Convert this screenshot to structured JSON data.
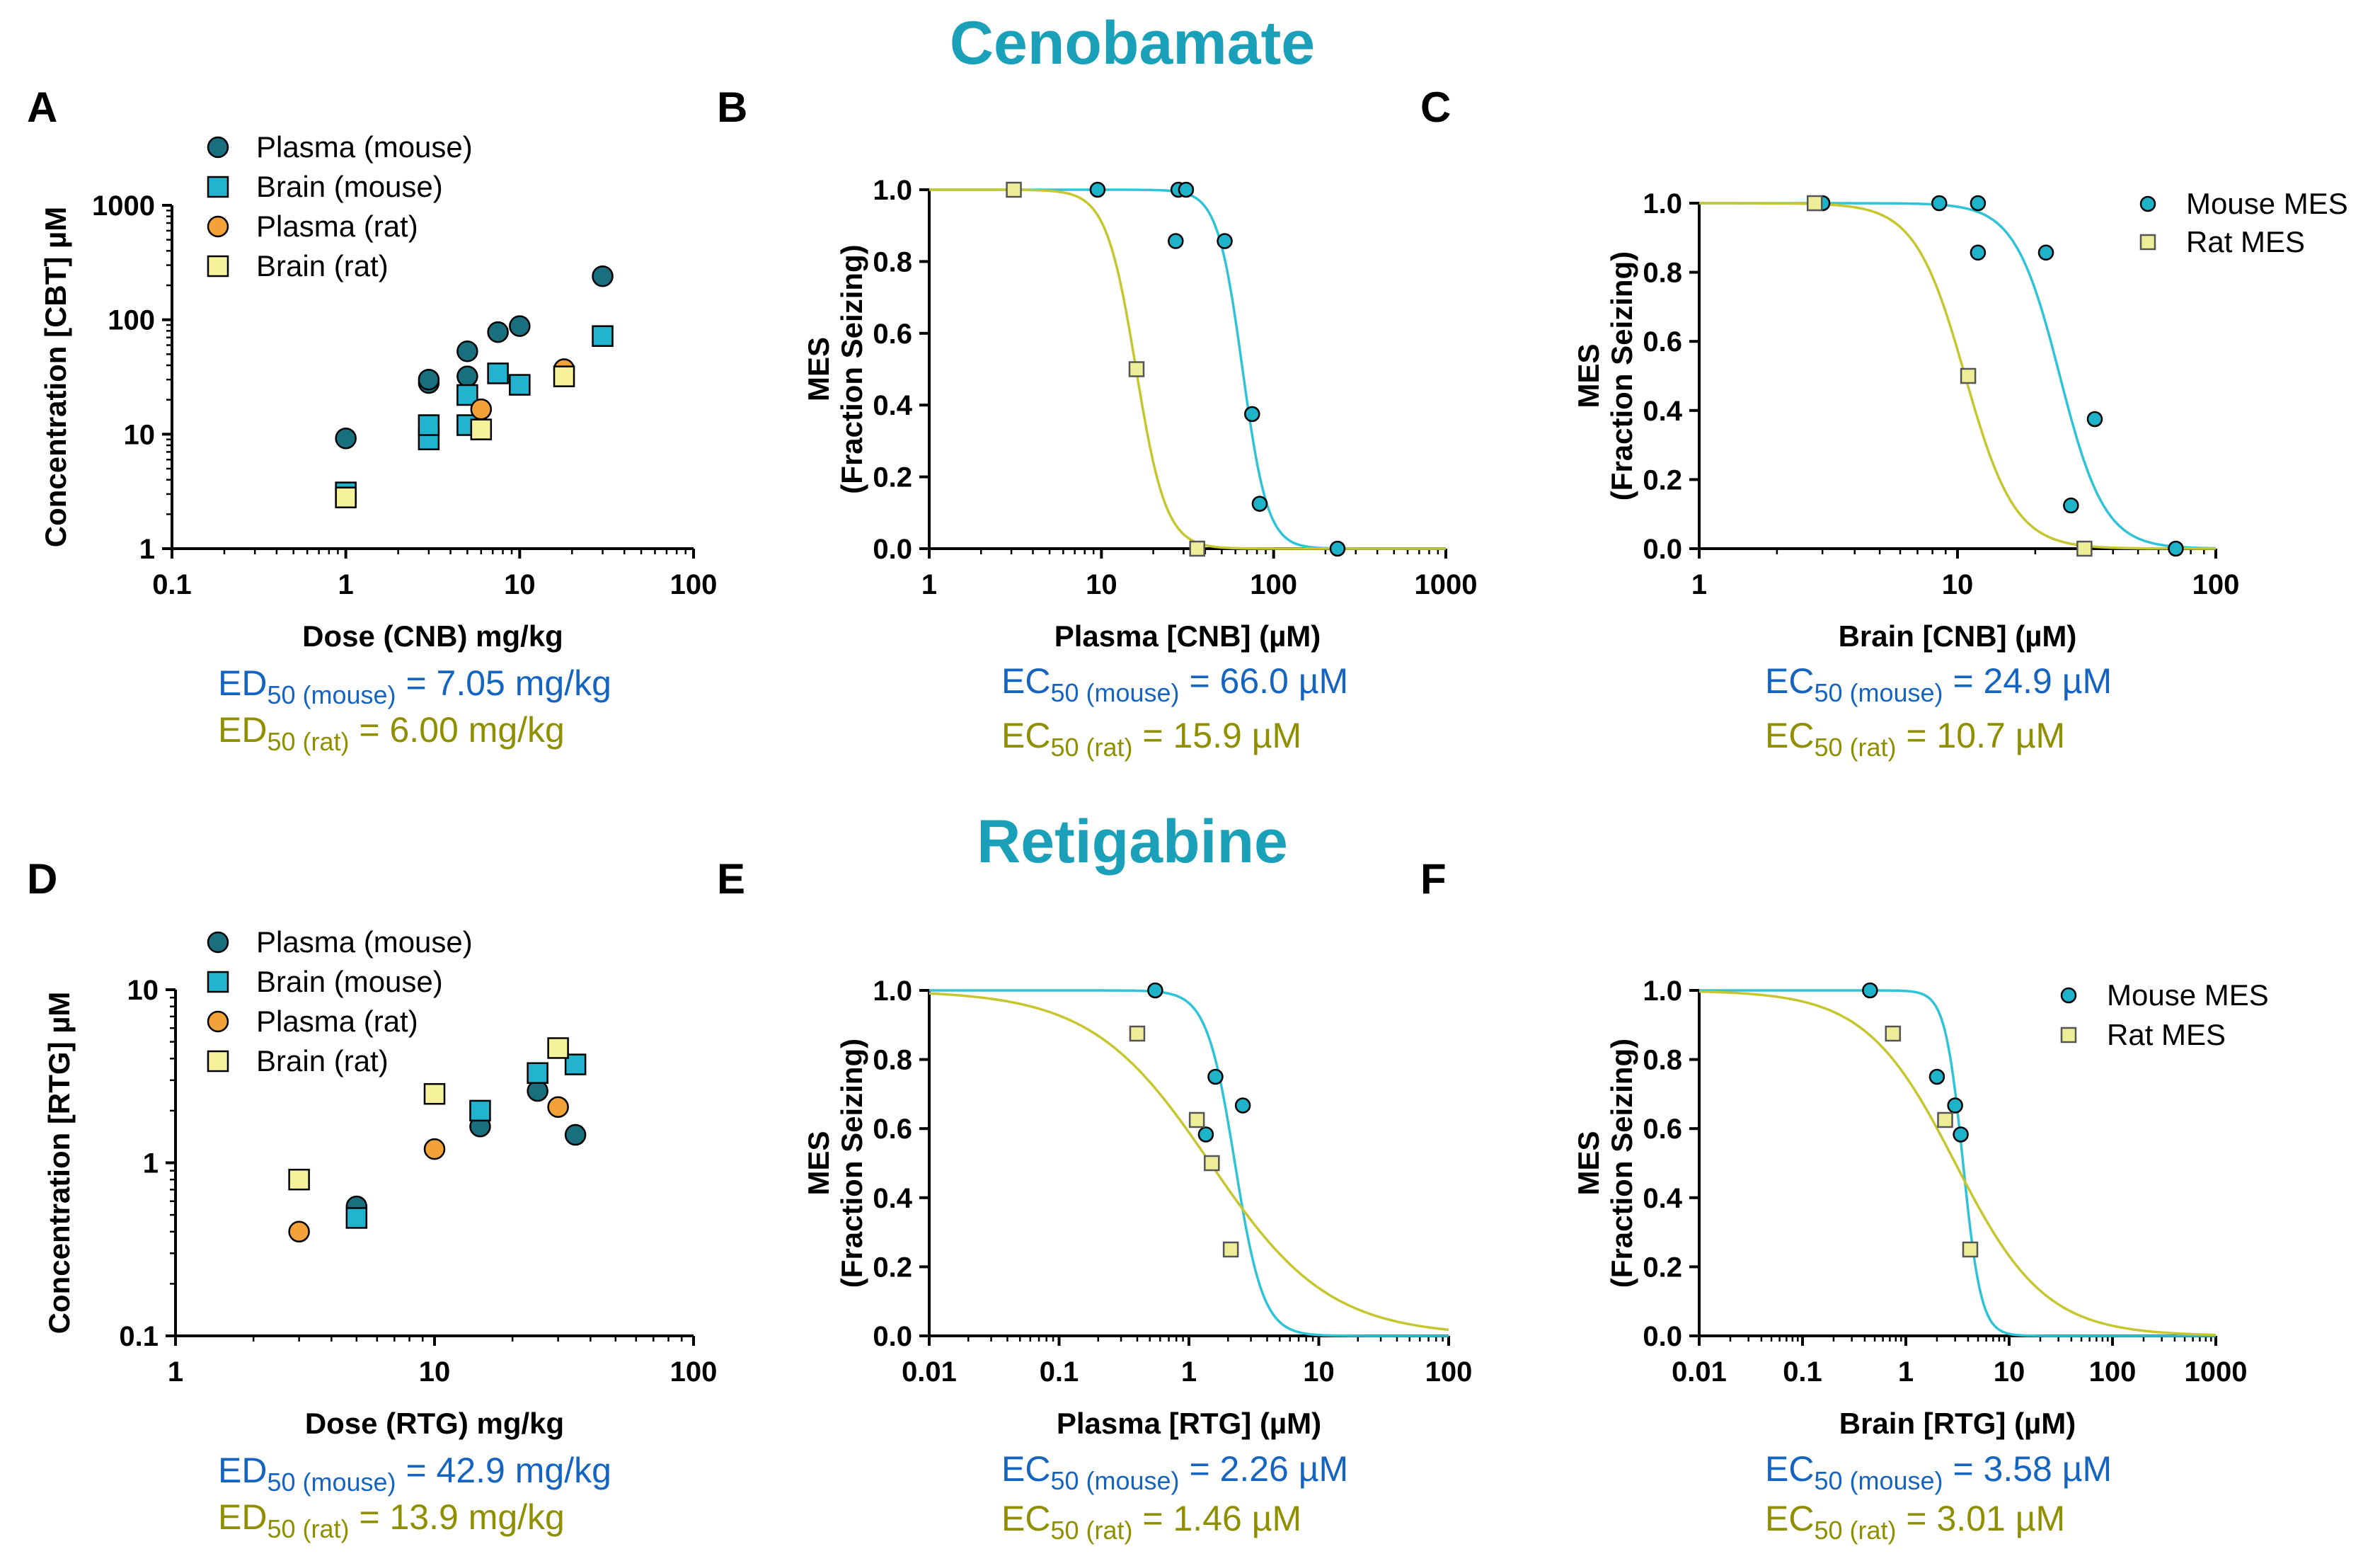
{
  "headers": {
    "cenobamate": "Cenobamate",
    "retigabine": "Retigabine"
  },
  "colors": {
    "plasma_mouse": "#1a6f7f",
    "brain_mouse": "#22b3cf",
    "plasma_rat": "#f3a23a",
    "brain_rat": "#f6f29b",
    "mouse_pt": "#1fb3c9",
    "rat_pt": "#eeee99",
    "mouse_curve": "#2ec3d6",
    "rat_curve": "#c6c62e",
    "mouse_text": "#1565c0",
    "rat_text": "#8f8f00"
  },
  "annotations": {
    "A": {
      "mouse": {
        "pre": "ED",
        "sub": "50 (mouse)",
        "post": " = 7.05 mg/kg"
      },
      "rat": {
        "pre": "ED",
        "sub": "50 (rat)",
        "post": " = 6.00 mg/kg"
      }
    },
    "B": {
      "mouse": {
        "pre": "EC",
        "sub": "50 (mouse)",
        "post": " = 66.0 µM"
      },
      "rat": {
        "pre": "EC",
        "sub": "50 (rat)",
        "post": " = 15.9 µM"
      }
    },
    "C": {
      "mouse": {
        "pre": "EC",
        "sub": "50 (mouse)",
        "post": " = 24.9 µM"
      },
      "rat": {
        "pre": "EC",
        "sub": "50 (rat)",
        "post": " = 10.7 µM"
      }
    },
    "D": {
      "mouse": {
        "pre": "ED",
        "sub": "50 (mouse)",
        "post": " = 42.9 mg/kg"
      },
      "rat": {
        "pre": "ED",
        "sub": "50 (rat)",
        "post": " = 13.9 mg/kg"
      }
    },
    "E": {
      "mouse": {
        "pre": "EC",
        "sub": "50 (mouse)",
        "post": " = 2.26 µM"
      },
      "rat": {
        "pre": "EC",
        "sub": "50 (rat)",
        "post": " = 1.46 µM"
      }
    },
    "F": {
      "mouse": {
        "pre": "EC",
        "sub": "50 (mouse)",
        "post": " = 3.58 µM"
      },
      "rat": {
        "pre": "EC",
        "sub": "50 (rat)",
        "post": " = 3.01 µM"
      }
    }
  },
  "chart_data": [
    {
      "id": "A",
      "type": "scatter",
      "xscale": "log",
      "yscale": "log",
      "xlabel": "Dose (CNB) mg/kg",
      "ylabel": "Concentration [CBT] µM",
      "xlim": [
        0.1,
        100
      ],
      "ylim": [
        1,
        1000
      ],
      "xticks": [
        0.1,
        1,
        10,
        100
      ],
      "xticklabels": [
        "0.1",
        "1",
        "10",
        "100"
      ],
      "yticks": [
        1,
        10,
        100,
        1000
      ],
      "yticklabels": [
        "1",
        "10",
        "100",
        "1000"
      ],
      "legend_pos": "top-left",
      "series": [
        {
          "name": "Plasma (mouse)",
          "marker": "circle",
          "color": "#1a6f7f",
          "points": [
            [
              1,
              9.2
            ],
            [
              3,
              28
            ],
            [
              3,
              30
            ],
            [
              5,
              32
            ],
            [
              5,
              53
            ],
            [
              7.5,
              78
            ],
            [
              10,
              88
            ],
            [
              30,
              240
            ]
          ]
        },
        {
          "name": "Brain (mouse)",
          "marker": "square",
          "color": "#22b3cf",
          "points": [
            [
              1,
              3.1
            ],
            [
              3,
              9
            ],
            [
              3,
              12
            ],
            [
              5,
              12
            ],
            [
              5,
              22
            ],
            [
              7.5,
              34
            ],
            [
              10,
              27
            ],
            [
              30,
              72
            ]
          ]
        },
        {
          "name": "Plasma (rat)",
          "marker": "circle",
          "color": "#f3a23a",
          "points": [
            [
              6,
              16.5
            ],
            [
              18,
              37
            ]
          ]
        },
        {
          "name": "Brain (rat)",
          "marker": "square",
          "color": "#f6f29b",
          "points": [
            [
              1,
              2.8
            ],
            [
              6,
              11
            ],
            [
              18,
              32
            ]
          ]
        }
      ]
    },
    {
      "id": "B",
      "type": "scatter",
      "xscale": "log",
      "yscale": "linear",
      "xlabel": "Plasma [CNB] (µM)",
      "ylabel": [
        "MES",
        "(Fraction Seizing)"
      ],
      "xlim": [
        1,
        1000
      ],
      "ylim": [
        0,
        1
      ],
      "xticks": [
        1,
        10,
        100,
        1000
      ],
      "xticklabels": [
        "1",
        "10",
        "100",
        "1000"
      ],
      "yticks": [
        0,
        0.2,
        0.4,
        0.6,
        0.8,
        1.0
      ],
      "yticklabels": [
        "0.0",
        "0.2",
        "0.4",
        "0.6",
        "0.8",
        "1.0"
      ],
      "legend_pos": "none",
      "series": [
        {
          "name": "Mouse MES",
          "marker": "circle",
          "color": "#1fb3c9",
          "points": [
            [
              9.5,
              1.0
            ],
            [
              28,
              1.0
            ],
            [
              31,
              1.0
            ],
            [
              27,
              0.857
            ],
            [
              52,
              0.857
            ],
            [
              75,
              0.375
            ],
            [
              83,
              0.125
            ],
            [
              235,
              0.0
            ]
          ]
        },
        {
          "name": "Rat MES",
          "marker": "square",
          "color": "#eeee99",
          "points": [
            [
              3.1,
              1.0
            ],
            [
              16,
              0.5
            ],
            [
              36,
              0.0
            ]
          ]
        }
      ],
      "fits": [
        {
          "name": "Mouse fit",
          "color": "#2ec3d6",
          "ec50": 66.0,
          "hill": 6.0
        },
        {
          "name": "Rat fit",
          "color": "#c6c62e",
          "ec50": 15.9,
          "hill": 5.0
        }
      ]
    },
    {
      "id": "C",
      "type": "scatter",
      "xscale": "log",
      "yscale": "linear",
      "xlabel": "Brain [CNB] (µM)",
      "ylabel": [
        "MES",
        "(Fraction Seizing)"
      ],
      "xlim": [
        1,
        100
      ],
      "ylim": [
        0,
        1
      ],
      "xticks": [
        1,
        10,
        100
      ],
      "xticklabels": [
        "1",
        "10",
        "100"
      ],
      "yticks": [
        0,
        0.2,
        0.4,
        0.6,
        0.8,
        1.0
      ],
      "yticklabels": [
        "0.0",
        "0.2",
        "0.4",
        "0.6",
        "0.8",
        "1.0"
      ],
      "legend_pos": "top-right",
      "series": [
        {
          "name": "Mouse MES",
          "marker": "circle",
          "color": "#1fb3c9",
          "points": [
            [
              3.0,
              1.0
            ],
            [
              8.5,
              1.0
            ],
            [
              12,
              1.0
            ],
            [
              12,
              0.857
            ],
            [
              22,
              0.857
            ],
            [
              27.5,
              0.125
            ],
            [
              34,
              0.375
            ],
            [
              70,
              0.0
            ]
          ]
        },
        {
          "name": "Rat MES",
          "marker": "square",
          "color": "#eeee99",
          "points": [
            [
              2.8,
              1.0
            ],
            [
              11,
              0.5
            ],
            [
              31,
              0.0
            ]
          ]
        }
      ],
      "fits": [
        {
          "name": "Mouse fit",
          "color": "#2ec3d6",
          "ec50": 24.9,
          "hill": 5.0
        },
        {
          "name": "Rat fit",
          "color": "#c6c62e",
          "ec50": 10.7,
          "hill": 4.5
        }
      ]
    },
    {
      "id": "D",
      "type": "scatter",
      "xscale": "log",
      "yscale": "log",
      "xlabel": "Dose (RTG) mg/kg",
      "ylabel": "Concentration [RTG] µM",
      "xlim": [
        1,
        100
      ],
      "ylim": [
        0.1,
        10
      ],
      "xticks": [
        1,
        10,
        100
      ],
      "xticklabels": [
        "1",
        "10",
        "100"
      ],
      "yticks": [
        0.1,
        1,
        10
      ],
      "yticklabels": [
        "0.1",
        "1",
        "10"
      ],
      "legend_pos": "top-left",
      "series": [
        {
          "name": "Plasma (mouse)",
          "marker": "circle",
          "color": "#1a6f7f",
          "points": [
            [
              5,
              0.56
            ],
            [
              15,
              1.62
            ],
            [
              25,
              2.6
            ],
            [
              35,
              1.45
            ]
          ]
        },
        {
          "name": "Brain (mouse)",
          "marker": "square",
          "color": "#22b3cf",
          "points": [
            [
              5,
              0.48
            ],
            [
              15,
              2.0
            ],
            [
              25,
              3.3
            ],
            [
              35,
              3.7
            ]
          ]
        },
        {
          "name": "Plasma (rat)",
          "marker": "circle",
          "color": "#f3a23a",
          "points": [
            [
              3,
              0.4
            ],
            [
              10,
              1.2
            ],
            [
              30,
              2.1
            ]
          ]
        },
        {
          "name": "Brain (rat)",
          "marker": "square",
          "color": "#f6f29b",
          "points": [
            [
              3,
              0.8
            ],
            [
              10,
              2.5
            ],
            [
              30,
              4.6
            ]
          ]
        }
      ]
    },
    {
      "id": "E",
      "type": "scatter",
      "xscale": "log",
      "yscale": "linear",
      "xlabel": "Plasma [RTG] (µM)",
      "ylabel": [
        "MES",
        "(Fraction Seizing)"
      ],
      "xlim": [
        0.01,
        100
      ],
      "ylim": [
        0,
        1
      ],
      "xticks": [
        0.01,
        0.1,
        1,
        10,
        100
      ],
      "xticklabels": [
        "0.01",
        "0.1",
        "1",
        "10",
        "100"
      ],
      "yticks": [
        0,
        0.2,
        0.4,
        0.6,
        0.8,
        1.0
      ],
      "yticklabels": [
        "0.0",
        "0.2",
        "0.4",
        "0.6",
        "0.8",
        "1.0"
      ],
      "legend_pos": "none",
      "series": [
        {
          "name": "Mouse MES",
          "marker": "circle",
          "color": "#1fb3c9",
          "points": [
            [
              0.55,
              1.0
            ],
            [
              1.35,
              0.583
            ],
            [
              1.6,
              0.75
            ],
            [
              2.6,
              0.667
            ]
          ]
        },
        {
          "name": "Rat MES",
          "marker": "square",
          "color": "#eeee99",
          "points": [
            [
              0.4,
              0.875
            ],
            [
              1.15,
              0.625
            ],
            [
              1.5,
              0.5
            ],
            [
              2.1,
              0.25
            ]
          ]
        }
      ],
      "fits": [
        {
          "name": "Mouse fit",
          "color": "#2ec3d6",
          "ec50": 2.26,
          "hill": 4.0
        },
        {
          "name": "Rat fit",
          "color": "#c6c62e",
          "ec50": 1.46,
          "hill": 0.95
        }
      ]
    },
    {
      "id": "F",
      "type": "scatter",
      "xscale": "log",
      "yscale": "linear",
      "xlabel": "Brain [RTG] (µM)",
      "ylabel": [
        "MES",
        "(Fraction Seizing)"
      ],
      "xlim": [
        0.01,
        1000
      ],
      "ylim": [
        0,
        1
      ],
      "xticks": [
        0.01,
        0.1,
        1,
        10,
        100,
        1000
      ],
      "xticklabels": [
        "0.01",
        "0.1",
        "1",
        "10",
        "100",
        "1000"
      ],
      "yticks": [
        0,
        0.2,
        0.4,
        0.6,
        0.8,
        1.0
      ],
      "yticklabels": [
        "0.0",
        "0.2",
        "0.4",
        "0.6",
        "0.8",
        "1.0"
      ],
      "legend_pos": "top-right",
      "series": [
        {
          "name": "Mouse MES",
          "marker": "circle",
          "color": "#1fb3c9",
          "points": [
            [
              0.45,
              1.0
            ],
            [
              2.0,
              0.75
            ],
            [
              3.0,
              0.667
            ],
            [
              3.4,
              0.583
            ]
          ]
        },
        {
          "name": "Rat MES",
          "marker": "square",
          "color": "#eeee99",
          "points": [
            [
              0.75,
              0.875
            ],
            [
              2.4,
              0.625
            ],
            [
              4.2,
              0.25
            ]
          ]
        }
      ],
      "fits": [
        {
          "name": "Mouse fit",
          "color": "#2ec3d6",
          "ec50": 3.58,
          "hill": 5.0
        },
        {
          "name": "Rat fit",
          "color": "#c6c62e",
          "ec50": 3.01,
          "hill": 1.0
        }
      ]
    }
  ]
}
